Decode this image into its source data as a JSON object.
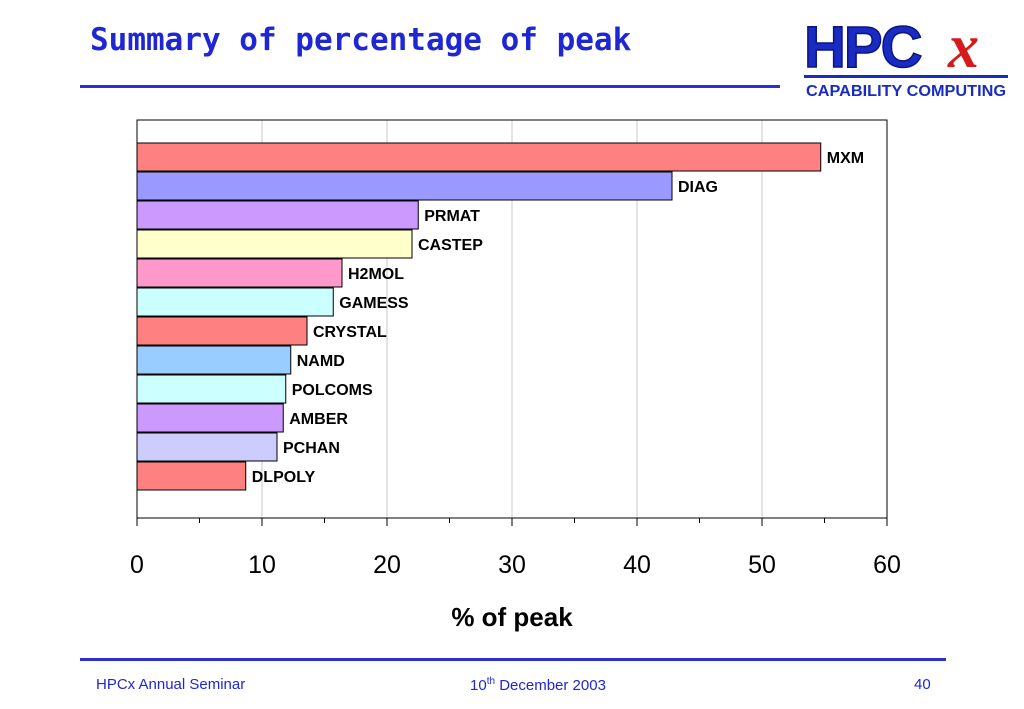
{
  "slide": {
    "title": "Summary of percentage of peak"
  },
  "logo": {
    "main_text": "HPC",
    "accent_text": "x",
    "subtitle": "CAPABILITY COMPUTING",
    "colors": {
      "main": "#1a2bc4",
      "accent": "#d61a1a",
      "bar": "#1a2bc4"
    }
  },
  "chart_data": {
    "type": "bar",
    "orientation": "horizontal",
    "categories": [
      "MXM",
      "DIAG",
      "PRMAT",
      "CASTEP",
      "H2MOL",
      "GAMESS",
      "CRYSTAL",
      "NAMD",
      "POLCOMS",
      "AMBER",
      "PCHAN",
      "DLPOLY"
    ],
    "values": [
      54.7,
      42.8,
      22.5,
      22.0,
      16.4,
      15.7,
      13.6,
      12.3,
      11.9,
      11.7,
      11.2,
      8.7
    ],
    "colors": [
      "#ff8080",
      "#9999ff",
      "#cc99ff",
      "#ffffcc",
      "#ff99cc",
      "#ccffff",
      "#ff8080",
      "#99ccff",
      "#ccffff",
      "#cc99ff",
      "#ccccff",
      "#ff8080"
    ],
    "xlabel": "% of peak",
    "xlim": [
      0,
      60
    ],
    "xticks": [
      "0",
      "10",
      "20",
      "30",
      "40",
      "50",
      "60"
    ],
    "grid": true,
    "legend": "none",
    "bar_labels": "right of bar"
  },
  "footer": {
    "left": "HPCx Annual Seminar",
    "date_day": "10",
    "date_suffix": "th",
    "date_rest": " December 2003",
    "page": "40"
  }
}
